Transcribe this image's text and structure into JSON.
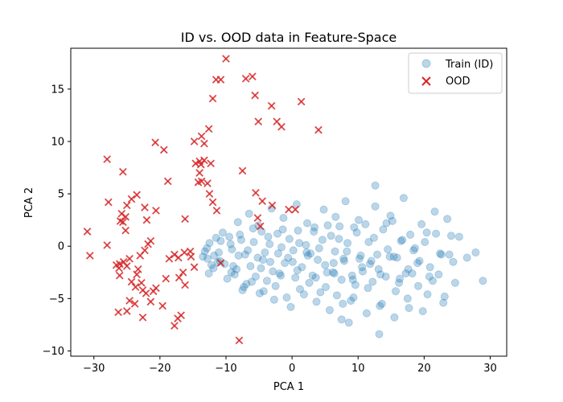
{
  "chart_data": {
    "type": "scatter",
    "title": "ID vs. OOD data in Feature-Space",
    "xlabel": "PCA 1",
    "ylabel": "PCA 2",
    "xlim": [
      -33.5,
      32.5
    ],
    "ylim": [
      -10.5,
      18.9
    ],
    "xticks": [
      -30,
      -20,
      -10,
      0,
      10,
      20,
      30
    ],
    "yticks": [
      -10,
      -5,
      0,
      5,
      10,
      15
    ],
    "xtick_labels": [
      "−30",
      "−20",
      "−10",
      "0",
      "10",
      "20",
      "30"
    ],
    "ytick_labels": [
      "−10",
      "−5",
      "0",
      "5",
      "10",
      "15"
    ],
    "grid": false,
    "legend_position": "top-right",
    "series": [
      {
        "name": "Train (ID)",
        "marker": "circle",
        "color": "#1f77b4",
        "alpha": 0.3,
        "x": [
          -12.8,
          -13.2,
          -12.5,
          -11.9,
          -12.2,
          -13.5,
          -11.5,
          -12.9,
          -11.2,
          -10.8,
          -12.6,
          -11.8,
          -10.2,
          -9.5,
          -9.1,
          -8.4,
          -7.9,
          -7.1,
          -6.3,
          -5.8,
          -5.2,
          -4.6,
          -4.1,
          -3.4,
          -2.9,
          -2.2,
          -1.6,
          -1.1,
          -0.4,
          0.2,
          0.9,
          1.5,
          2.1,
          2.8,
          3.4,
          3.9,
          4.6,
          5.3,
          5.9,
          6.5,
          7.2,
          7.9,
          8.4,
          9.1,
          9.8,
          10.4,
          11.1,
          11.8,
          12.4,
          13.1,
          13.8,
          14.5,
          15.2,
          15.9,
          16.5,
          17.2,
          17.9,
          18.6,
          19.3,
          20.1,
          20.9,
          21.8,
          22.6,
          23.5,
          24.4,
          25.3,
          26.5,
          27.8,
          28.9,
          -9.8,
          -8.7,
          -7.5,
          -6.9,
          -5.5,
          -4.9,
          -3.8,
          -2.5,
          -1.9,
          -0.8,
          0.5,
          1.2,
          2.6,
          3.1,
          4.3,
          5.1,
          6.2,
          6.8,
          7.5,
          8.9,
          9.6,
          10.7,
          11.5,
          12.2,
          13.6,
          14.2,
          15.7,
          16.3,
          17.5,
          18.2,
          19.1,
          20.5,
          21.3,
          22.2,
          23.1,
          24.7,
          -8.2,
          -6.5,
          -5.1,
          -3.1,
          -1.3,
          0.7,
          2.3,
          4.8,
          6.6,
          8.1,
          10.1,
          12.6,
          14.9,
          16.9,
          19.6,
          21.6,
          -7.3,
          -4.3,
          -2.7,
          -0.2,
          1.8,
          3.7,
          5.7,
          7.7,
          9.3,
          11.3,
          13.3,
          15.5,
          17.7,
          19.8,
          22.9,
          -11.1,
          -10.5,
          -9.3,
          -8.9,
          -7.7,
          -6.7,
          -5.9,
          -4.4,
          -3.6,
          -2.1,
          -1.4,
          0.1,
          1.1,
          2.4,
          3.3,
          4.1,
          5.4,
          6.3,
          7.1,
          8.3,
          9.4,
          10.2,
          11.6,
          12.9,
          14.3,
          15.4,
          16.7,
          18.4,
          20.4,
          22.4,
          24.1,
          -10.9,
          -9.2,
          -8.1,
          -6.1,
          -4.7,
          -3.3,
          -1.7,
          -0.6,
          0.8,
          2.2,
          3.6,
          5.0,
          6.4,
          7.8,
          9.2,
          10.6,
          12.0,
          13.4,
          14.8,
          16.2,
          17.6,
          19.0,
          20.8,
          23.8,
          13.2,
          7.5,
          8.6,
          12.6
        ],
        "y": [
          -1.2,
          -0.5,
          0.3,
          -2.1,
          -1.8,
          -1.0,
          0.8,
          -0.2,
          -1.5,
          0.5,
          -2.6,
          -0.9,
          -1.7,
          0.9,
          -0.3,
          -2.2,
          1.1,
          -0.8,
          -1.9,
          0.4,
          -1.1,
          1.4,
          -0.6,
          0.2,
          -2.4,
          1.2,
          -0.1,
          -1.6,
          0.7,
          -0.4,
          1.5,
          -2.0,
          0.1,
          -0.7,
          1.8,
          -1.3,
          0.6,
          -2.5,
          1.0,
          -0.5,
          1.9,
          -1.4,
          0.3,
          -2.8,
          1.3,
          -0.9,
          2.1,
          -1.7,
          0.8,
          -2.2,
          1.6,
          -0.3,
          2.4,
          -1.1,
          0.5,
          -2.6,
          1.1,
          -0.2,
          -1.4,
          0.4,
          -2.0,
          1.2,
          -0.8,
          2.6,
          -1.5,
          0.9,
          -1.1,
          -0.6,
          -3.3,
          -3.1,
          -2.7,
          -4.2,
          -3.6,
          -2.9,
          -4.5,
          -3.3,
          -3.8,
          -2.6,
          -4.9,
          -3.0,
          -4.1,
          -3.5,
          -2.8,
          -4.4,
          -3.9,
          -2.5,
          -4.7,
          -3.2,
          -5.2,
          -3.7,
          -2.4,
          -4.0,
          -3.4,
          -5.5,
          -2.9,
          -4.3,
          -3.1,
          -5.0,
          -2.6,
          -3.8,
          -4.6,
          -3.3,
          -2.7,
          -4.8,
          -3.5,
          2.3,
          3.1,
          2.0,
          3.6,
          2.7,
          4.0,
          2.2,
          3.5,
          2.8,
          4.3,
          2.5,
          3.8,
          2.9,
          4.6,
          2.1,
          3.3,
          -3.9,
          -4.3,
          -5.1,
          -5.8,
          -4.6,
          -5.3,
          -6.1,
          -5.5,
          -4.9,
          -6.4,
          -5.7,
          -6.8,
          -5.9,
          -6.2,
          -5.4,
          -0.6,
          1.3,
          0.2,
          -1.9,
          0.6,
          -0.4,
          1.7,
          -1.3,
          0.9,
          -0.7,
          1.6,
          -1.5,
          0.3,
          -0.9,
          1.4,
          -0.2,
          2.0,
          -1.6,
          0.7,
          -0.5,
          1.8,
          -1.2,
          0.4,
          -0.8,
          2.2,
          -1.0,
          0.6,
          -0.4,
          1.3,
          -0.7,
          1.0,
          -1.4,
          -2.5,
          -0.9,
          -3.4,
          -2.1,
          -1.5,
          -2.8,
          -1.1,
          -2.3,
          -0.6,
          -3.0,
          -1.8,
          -2.6,
          -1.2,
          -3.2,
          -2.0,
          -1.4,
          -2.7,
          -1.0,
          -3.5,
          -2.2,
          -1.6,
          -2.9,
          -0.8,
          -8.4,
          -7.0,
          -7.3,
          5.8
        ],
        "marker_name": "id-point"
      },
      {
        "name": "OOD",
        "marker": "x",
        "color": "#d62728",
        "alpha": 0.85,
        "x": [
          -10.0,
          -11.5,
          -10.8,
          -7.0,
          -6.0,
          -5.6,
          -5.1,
          -3.1,
          -2.3,
          -1.6,
          1.4,
          -12.0,
          -12.6,
          -13.7,
          -13.3,
          -14.0,
          -14.8,
          -14.6,
          -14.2,
          -13.3,
          -13.8,
          -12.3,
          -12.8,
          -12.5,
          -12.0,
          -11.4,
          -16.2,
          -19.4,
          -20.7,
          -18.8,
          -20.6,
          -22.3,
          -22.0,
          -23.5,
          -24.3,
          -25.0,
          -25.2,
          -25.6,
          -25.8,
          -26.0,
          -27.8,
          -28.0,
          -31.0,
          -30.6,
          -28.0,
          -26.1,
          -25.0,
          -24.6,
          -23.0,
          -22.3,
          -21.8,
          -21.4,
          -23.3,
          -23.5,
          -24.3,
          -25.5,
          -26.1,
          -26.6,
          -26.3,
          -22.8,
          -22.6,
          -22.1,
          -21.4,
          -21.0,
          -20.6,
          -19.6,
          -18.6,
          -17.8,
          -17.2,
          -16.3,
          -15.3,
          -14.8,
          -16.8,
          -17.3,
          -17.8,
          -19.1,
          -23.8,
          -24.6,
          -25.0,
          -8.0,
          -7.5,
          -5.5,
          -4.5,
          -5.2,
          -4.8,
          -3.0,
          -0.5,
          4.0,
          -16.2,
          -15.4,
          -13.7,
          -14.0,
          -10.8,
          -25.6,
          -22.6,
          -17.1,
          -16.5,
          0.5,
          -25.2,
          -23.7,
          -26.2
        ],
        "y": [
          17.9,
          15.9,
          15.9,
          16.0,
          16.2,
          14.4,
          11.9,
          13.4,
          11.9,
          11.4,
          13.8,
          14.1,
          11.2,
          10.5,
          9.8,
          8.1,
          10.0,
          7.9,
          6.1,
          8.2,
          7.8,
          7.9,
          6.0,
          5.0,
          4.2,
          3.4,
          -3.7,
          9.2,
          9.9,
          6.2,
          3.4,
          3.7,
          2.5,
          4.9,
          4.5,
          3.9,
          2.8,
          2.3,
          3.1,
          2.4,
          4.2,
          8.3,
          1.4,
          -0.9,
          0.1,
          -1.7,
          -1.9,
          -1.2,
          -0.9,
          -0.4,
          0.2,
          0.5,
          -2.2,
          -2.7,
          -3.4,
          -1.5,
          -2.8,
          -1.8,
          -6.3,
          -3.5,
          -4.2,
          -4.5,
          -5.3,
          -4.3,
          -4.0,
          -5.7,
          -1.2,
          -0.8,
          -1.1,
          -0.6,
          -1.0,
          -2.0,
          -6.6,
          -6.9,
          -7.6,
          -3.1,
          -5.5,
          -5.2,
          -6.2,
          -9.0,
          7.2,
          5.1,
          4.3,
          2.7,
          1.9,
          3.9,
          3.5,
          11.1,
          2.6,
          -0.5,
          6.2,
          7.0,
          -1.6,
          7.1,
          -6.8,
          -3.0,
          -2.5,
          3.5,
          1.5,
          -3.9,
          -2.1
        ],
        "marker_name": "ood-point"
      }
    ]
  }
}
